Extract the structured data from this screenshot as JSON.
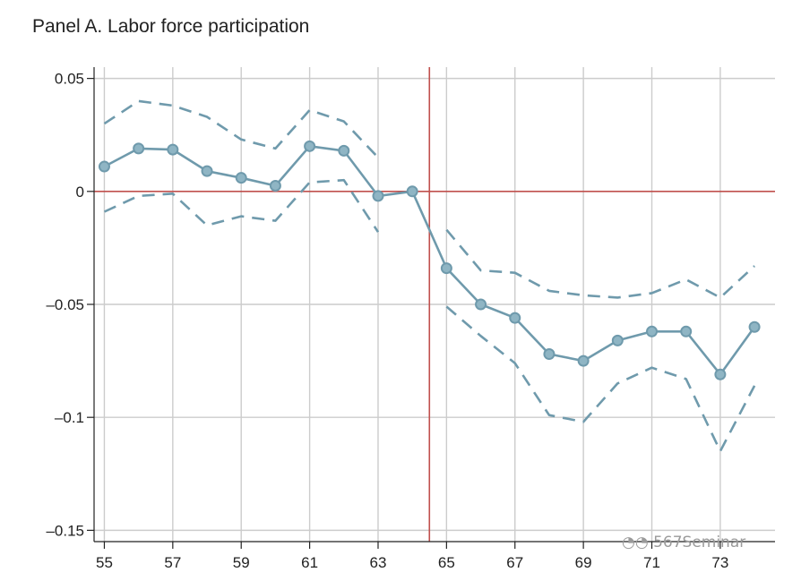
{
  "title": "Panel A. Labor force participation",
  "watermark": "567Seminar",
  "colors": {
    "series": "#6f9aac",
    "reference": "#c0504d",
    "grid": "#cccccc",
    "axis": "#222222"
  },
  "chart_data": {
    "type": "line",
    "title": "Panel A. Labor force participation",
    "xlabel": "",
    "ylabel": "",
    "xlim": [
      54.7,
      74.6
    ],
    "ylim": [
      -0.155,
      0.055
    ],
    "grid": true,
    "x_ticks": [
      55,
      57,
      59,
      61,
      63,
      65,
      67,
      69,
      71,
      73
    ],
    "x_tick_labels": [
      "55",
      "57",
      "59",
      "61",
      "63",
      "65",
      "67",
      "69",
      "71",
      "73"
    ],
    "y_ticks": [
      0.05,
      0,
      -0.05,
      -0.1,
      -0.15
    ],
    "y_tick_labels": [
      "0.05",
      "0",
      "–0.05",
      "–0.1",
      "–0.15"
    ],
    "reference_lines": {
      "vertical": 64.5,
      "horizontal": 0
    },
    "x": [
      55,
      56,
      57,
      58,
      59,
      60,
      61,
      62,
      63,
      64,
      65,
      66,
      67,
      68,
      69,
      70,
      71,
      72,
      73,
      74
    ],
    "series": [
      {
        "role": "estimate",
        "style": "solid-markers",
        "values": [
          0.011,
          0.019,
          0.0185,
          0.009,
          0.006,
          0.0025,
          0.02,
          0.018,
          -0.002,
          0.0,
          -0.034,
          -0.05,
          -0.056,
          -0.072,
          -0.075,
          -0.066,
          -0.062,
          -0.062,
          -0.081,
          -0.06
        ]
      },
      {
        "role": "upper",
        "style": "dashed",
        "values": [
          0.03,
          0.04,
          0.038,
          0.033,
          0.023,
          0.019,
          0.036,
          0.031,
          0.015,
          null,
          -0.017,
          -0.035,
          -0.036,
          -0.044,
          -0.046,
          -0.047,
          -0.045,
          -0.039,
          -0.047,
          -0.033
        ]
      },
      {
        "role": "lower",
        "style": "dashed",
        "values": [
          -0.009,
          -0.002,
          -0.001,
          -0.015,
          -0.011,
          -0.013,
          0.004,
          0.005,
          -0.018,
          null,
          -0.051,
          -0.064,
          -0.076,
          -0.099,
          -0.102,
          -0.085,
          -0.078,
          -0.083,
          -0.115,
          -0.086
        ]
      }
    ]
  }
}
